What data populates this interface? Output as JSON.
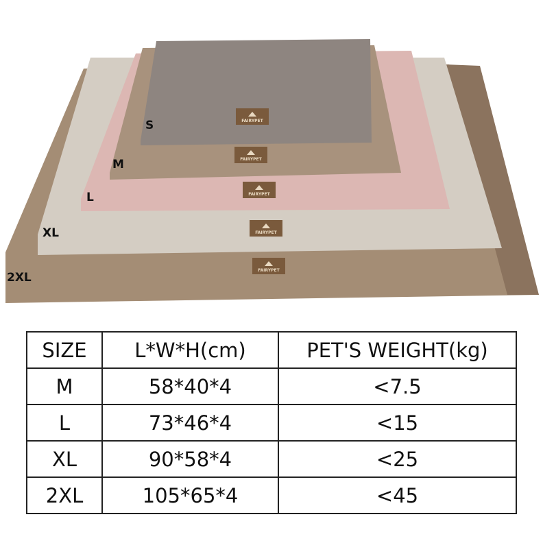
{
  "photo": {
    "brand_tag": "FAIRYPET",
    "mat_labels": [
      "S",
      "M",
      "L",
      "XL",
      "2XL"
    ],
    "colors": {
      "s": "#8e8580",
      "m": "#a8927d",
      "l": "#dcb7b3",
      "xl": "#d4cdc3",
      "xxl": "#a48d75",
      "tag": "#7a5a3c"
    }
  },
  "table": {
    "headers": [
      "SIZE",
      "L*W*H(cm)",
      "PET'S WEIGHT(kg)"
    ],
    "rows": [
      [
        "M",
        "58*40*4",
        "<7.5"
      ],
      [
        "L",
        "73*46*4",
        "<15"
      ],
      [
        "XL",
        "90*58*4",
        "<25"
      ],
      [
        "2XL",
        "105*65*4",
        "<45"
      ]
    ]
  }
}
